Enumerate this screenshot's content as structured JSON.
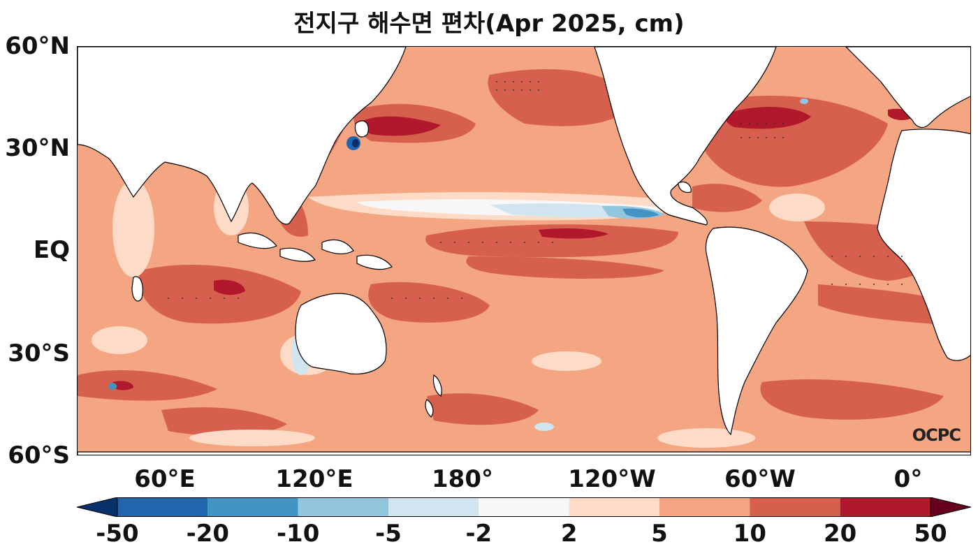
{
  "title": "전지구 해수면 편차(Apr 2025, cm)",
  "y_axis": {
    "ticks": [
      "60°N",
      "30°N",
      "EQ",
      "30°S",
      "60°S"
    ]
  },
  "x_axis": {
    "ticks": [
      "60°E",
      "120°E",
      "180°",
      "120°W",
      "60°W",
      "0°"
    ]
  },
  "colorbar": {
    "levels": [
      "-50",
      "-20",
      "-10",
      "-5",
      "-2",
      "2",
      "5",
      "10",
      "20",
      "50"
    ],
    "colors": [
      "#08306b",
      "#2166ac",
      "#4393c3",
      "#92c5de",
      "#d1e5f0",
      "#f7f7f7",
      "#fddbc7",
      "#f4a582",
      "#d6604d",
      "#b2182b",
      "#67001f"
    ]
  },
  "logo": "OCPC",
  "colors": {
    "ocean_base": "#f4a582",
    "strong_positive": "#b2182b",
    "positive": "#d6604d",
    "weak_positive": "#fddbc7",
    "neutral": "#f7f7f7",
    "weak_negative": "#d1e5f0",
    "negative": "#4393c3",
    "land": "#ffffff",
    "coast": "#000000"
  }
}
